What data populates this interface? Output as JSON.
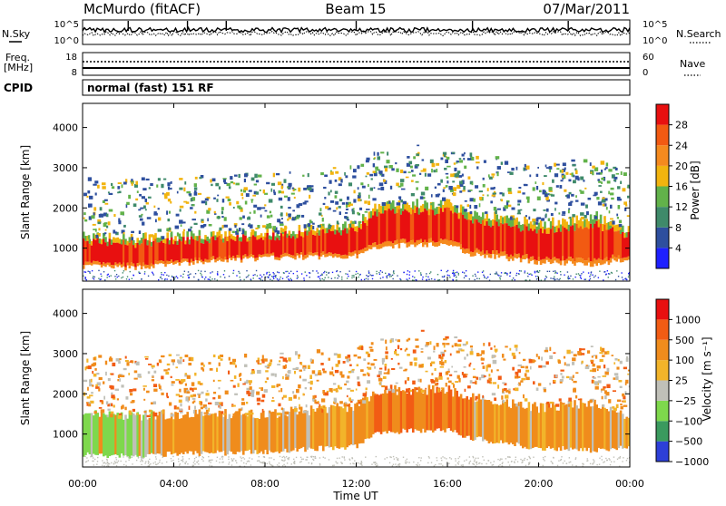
{
  "header": {
    "station": "McMurdo (fitACF)",
    "beam": "Beam 15",
    "date": "07/Mar/2011"
  },
  "noise_panel": {
    "left_label": "N.Sky",
    "right_label": "N.Search",
    "yticks_left": [
      "10^5",
      "10^0"
    ],
    "yticks_right": [
      "10^5",
      "10^0"
    ]
  },
  "freq_panel": {
    "left_label_line1": "Freq.",
    "left_label_line2": "[MHz]",
    "right_label": "Nave",
    "yticks_left": [
      "18",
      "8"
    ],
    "yticks_right": [
      "60",
      "0"
    ]
  },
  "cpid": {
    "label": "CPID",
    "value": "normal (fast) 151 RF"
  },
  "colors": {
    "power": [
      "#1e20ff",
      "#2e4f9e",
      "#3f8a6a",
      "#62b24a",
      "#f2b40f",
      "#f58a1e",
      "#f25a12",
      "#e81010"
    ],
    "velocity": [
      "#2d3fd8",
      "#3a9a5e",
      "#7ed84c",
      "#c0c0b8",
      "#f2b42a",
      "#f08c1c",
      "#f25c14",
      "#e81010"
    ]
  },
  "chart_data": [
    {
      "type": "heatmap",
      "name": "power",
      "ylabel": "Slant Range [km]",
      "xlabel": "",
      "x_range_hours": [
        0,
        24
      ],
      "ylim": [
        180,
        4600
      ],
      "yticks": [
        "1000",
        "2000",
        "3000",
        "4000"
      ],
      "xticks": [
        "00:00",
        "04:00",
        "08:00",
        "12:00",
        "16:00",
        "20:00",
        "00:00"
      ],
      "colorbar_label": "Power [dB]",
      "colorbar_ticks": [
        "4",
        "8",
        "12",
        "16",
        "20",
        "24",
        "28"
      ],
      "main_band": [
        {
          "t": 0,
          "lo": 550,
          "hi": 1300
        },
        {
          "t": 2,
          "lo": 500,
          "hi": 1250
        },
        {
          "t": 4,
          "lo": 600,
          "hi": 1300
        },
        {
          "t": 8,
          "lo": 750,
          "hi": 1400
        },
        {
          "t": 12,
          "lo": 800,
          "hi": 1600
        },
        {
          "t": 13,
          "lo": 1050,
          "hi": 2100
        },
        {
          "t": 16,
          "lo": 1100,
          "hi": 2100
        },
        {
          "t": 17,
          "lo": 850,
          "hi": 1900
        },
        {
          "t": 20,
          "lo": 650,
          "hi": 1600
        },
        {
          "t": 22.5,
          "lo": 600,
          "hi": 1800
        },
        {
          "t": 23.5,
          "lo": 700,
          "hi": 1500
        }
      ]
    },
    {
      "type": "heatmap",
      "name": "velocity",
      "ylabel": "Slant Range [km]",
      "xlabel": "Time UT",
      "x_range_hours": [
        0,
        24
      ],
      "ylim": [
        180,
        4600
      ],
      "yticks": [
        "1000",
        "2000",
        "3000",
        "4000"
      ],
      "xticks": [
        "00:00",
        "04:00",
        "08:00",
        "12:00",
        "16:00",
        "20:00",
        "00:00"
      ],
      "colorbar_label": "Velocity [m s⁻¹]",
      "colorbar_ticks": [
        "1000",
        "500",
        "100",
        "25",
        "−25",
        "−100",
        "−500",
        "−1000"
      ],
      "main_band": [
        {
          "t": 0,
          "lo": 500,
          "hi": 1500
        },
        {
          "t": 2,
          "lo": 450,
          "hi": 1450
        },
        {
          "t": 4,
          "lo": 500,
          "hi": 1500
        },
        {
          "t": 8,
          "lo": 550,
          "hi": 1500
        },
        {
          "t": 12,
          "lo": 700,
          "hi": 1700
        },
        {
          "t": 13,
          "lo": 1050,
          "hi": 2100
        },
        {
          "t": 16,
          "lo": 1100,
          "hi": 2100
        },
        {
          "t": 17,
          "lo": 900,
          "hi": 1900
        },
        {
          "t": 20,
          "lo": 650,
          "hi": 1650
        },
        {
          "t": 22.5,
          "lo": 600,
          "hi": 1800
        },
        {
          "t": 23.5,
          "lo": 650,
          "hi": 1500
        }
      ]
    }
  ]
}
